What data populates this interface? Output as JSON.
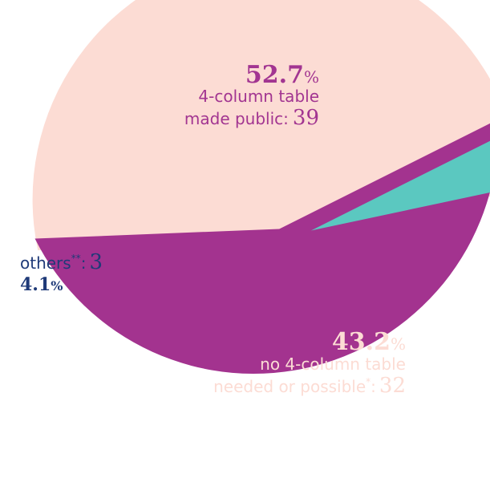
{
  "chart_data": {
    "type": "pie",
    "title": "",
    "slices": [
      {
        "percent_value": "52.7",
        "percent_sign": "%",
        "label_lines": [
          "4-column table",
          "made public:"
        ],
        "count": "39",
        "value": 39,
        "color": "#fcdcd4",
        "pct_color": "#a23591",
        "label_color": "#a23591"
      },
      {
        "percent_value": "43.2",
        "percent_sign": "%",
        "label_lines": [
          "no 4-column table",
          "needed or possible"
        ],
        "footnote_mark": "*",
        "label_suffix": ":",
        "count": "32",
        "value": 32,
        "color": "#a3338f",
        "pct_color": "#fcdcd4",
        "label_color": "#fcdcd4"
      },
      {
        "percent_value": "4.1",
        "percent_sign": "%",
        "label_lines": [
          "others"
        ],
        "footnote_mark": "**",
        "label_suffix": ":",
        "count": "3",
        "value": 3,
        "color": "#5bc8c0",
        "pct_color": "#1f3a78",
        "label_color": "#1f3a78"
      }
    ]
  }
}
